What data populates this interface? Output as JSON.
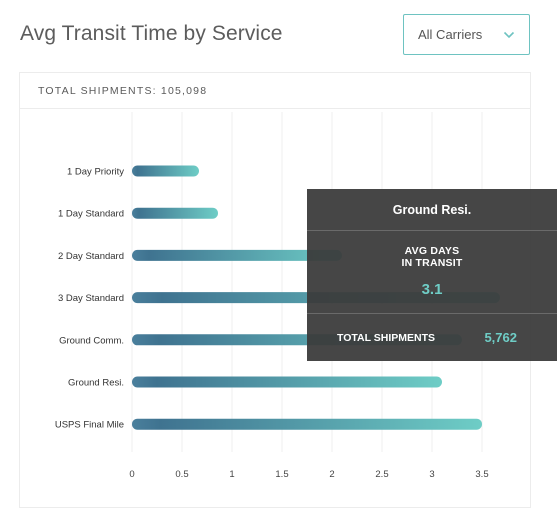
{
  "header": {
    "title": "Avg Transit Time by Service"
  },
  "carrier_filter": {
    "selected": "All Carriers"
  },
  "card": {
    "total_label": "TOTAL SHIPMENTS:",
    "total_value": "105,098"
  },
  "tooltip": {
    "service": "Ground Resi.",
    "avg_label_line1": "AVG DAYS",
    "avg_label_line2": "IN TRANSIT",
    "avg_value": "3.1",
    "shipments_label": "TOTAL SHIPMENTS",
    "shipments_value": "5,762"
  },
  "colors": {
    "bar_start": "#4a7f9c",
    "bar_end": "#6ecdc6",
    "accent": "#6ec3c1",
    "tooltip_bg": "#3a3a3a"
  },
  "chart_data": {
    "type": "bar",
    "orientation": "horizontal",
    "categories": [
      "1 Day Priority",
      "1 Day Standard",
      "2 Day Standard",
      "3 Day Standard",
      "Ground Comm.",
      "Ground Resi.",
      "USPS Final Mile"
    ],
    "values": [
      0.67,
      0.86,
      2.1,
      3.68,
      3.3,
      3.1,
      3.5
    ],
    "xlim": [
      0,
      3.7
    ],
    "xticks": [
      0,
      0.5,
      1,
      1.5,
      2,
      2.5,
      3,
      3.5
    ],
    "grid": true
  }
}
